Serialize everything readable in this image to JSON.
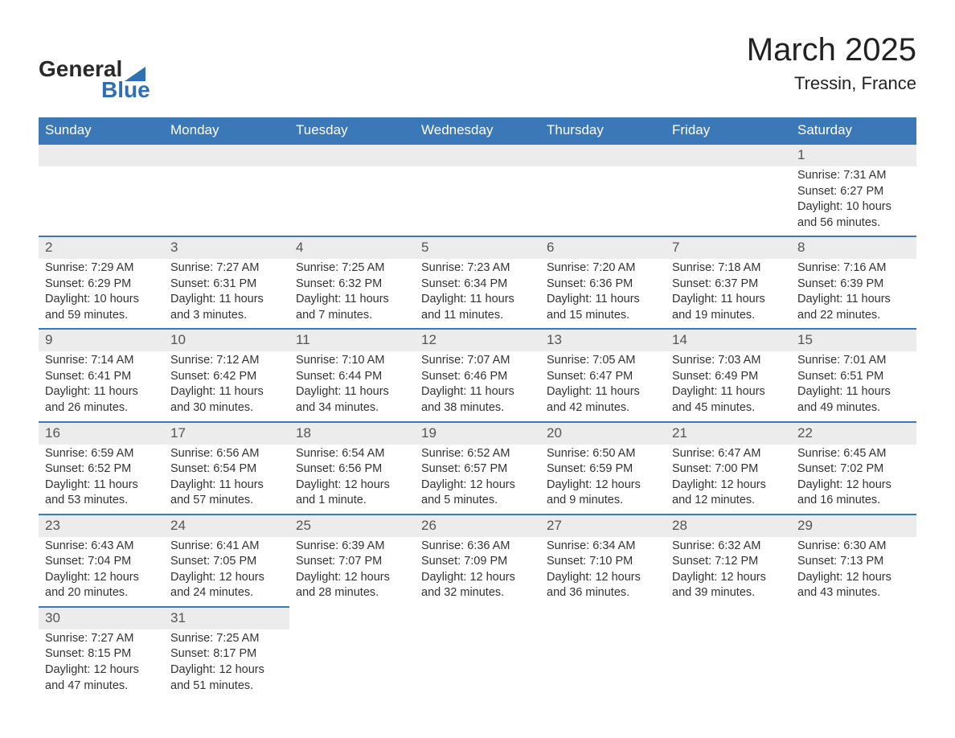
{
  "logo": {
    "word1": "General",
    "word2": "Blue",
    "tri_color": "#2f6fb3"
  },
  "title": "March 2025",
  "location": "Tressin, France",
  "header_bg": "#3b78b8",
  "header_text": "#ffffff",
  "daynum_bg": "#ececec",
  "row_border": "#3b78b8",
  "text_color": "#333333",
  "weekdays": [
    "Sunday",
    "Monday",
    "Tuesday",
    "Wednesday",
    "Thursday",
    "Friday",
    "Saturday"
  ],
  "weeks": [
    [
      null,
      null,
      null,
      null,
      null,
      null,
      {
        "n": "1",
        "sr": "7:31 AM",
        "ss": "6:27 PM",
        "dl": "10 hours and 56 minutes."
      }
    ],
    [
      {
        "n": "2",
        "sr": "7:29 AM",
        "ss": "6:29 PM",
        "dl": "10 hours and 59 minutes."
      },
      {
        "n": "3",
        "sr": "7:27 AM",
        "ss": "6:31 PM",
        "dl": "11 hours and 3 minutes."
      },
      {
        "n": "4",
        "sr": "7:25 AM",
        "ss": "6:32 PM",
        "dl": "11 hours and 7 minutes."
      },
      {
        "n": "5",
        "sr": "7:23 AM",
        "ss": "6:34 PM",
        "dl": "11 hours and 11 minutes."
      },
      {
        "n": "6",
        "sr": "7:20 AM",
        "ss": "6:36 PM",
        "dl": "11 hours and 15 minutes."
      },
      {
        "n": "7",
        "sr": "7:18 AM",
        "ss": "6:37 PM",
        "dl": "11 hours and 19 minutes."
      },
      {
        "n": "8",
        "sr": "7:16 AM",
        "ss": "6:39 PM",
        "dl": "11 hours and 22 minutes."
      }
    ],
    [
      {
        "n": "9",
        "sr": "7:14 AM",
        "ss": "6:41 PM",
        "dl": "11 hours and 26 minutes."
      },
      {
        "n": "10",
        "sr": "7:12 AM",
        "ss": "6:42 PM",
        "dl": "11 hours and 30 minutes."
      },
      {
        "n": "11",
        "sr": "7:10 AM",
        "ss": "6:44 PM",
        "dl": "11 hours and 34 minutes."
      },
      {
        "n": "12",
        "sr": "7:07 AM",
        "ss": "6:46 PM",
        "dl": "11 hours and 38 minutes."
      },
      {
        "n": "13",
        "sr": "7:05 AM",
        "ss": "6:47 PM",
        "dl": "11 hours and 42 minutes."
      },
      {
        "n": "14",
        "sr": "7:03 AM",
        "ss": "6:49 PM",
        "dl": "11 hours and 45 minutes."
      },
      {
        "n": "15",
        "sr": "7:01 AM",
        "ss": "6:51 PM",
        "dl": "11 hours and 49 minutes."
      }
    ],
    [
      {
        "n": "16",
        "sr": "6:59 AM",
        "ss": "6:52 PM",
        "dl": "11 hours and 53 minutes."
      },
      {
        "n": "17",
        "sr": "6:56 AM",
        "ss": "6:54 PM",
        "dl": "11 hours and 57 minutes."
      },
      {
        "n": "18",
        "sr": "6:54 AM",
        "ss": "6:56 PM",
        "dl": "12 hours and 1 minute."
      },
      {
        "n": "19",
        "sr": "6:52 AM",
        "ss": "6:57 PM",
        "dl": "12 hours and 5 minutes."
      },
      {
        "n": "20",
        "sr": "6:50 AM",
        "ss": "6:59 PM",
        "dl": "12 hours and 9 minutes."
      },
      {
        "n": "21",
        "sr": "6:47 AM",
        "ss": "7:00 PM",
        "dl": "12 hours and 12 minutes."
      },
      {
        "n": "22",
        "sr": "6:45 AM",
        "ss": "7:02 PM",
        "dl": "12 hours and 16 minutes."
      }
    ],
    [
      {
        "n": "23",
        "sr": "6:43 AM",
        "ss": "7:04 PM",
        "dl": "12 hours and 20 minutes."
      },
      {
        "n": "24",
        "sr": "6:41 AM",
        "ss": "7:05 PM",
        "dl": "12 hours and 24 minutes."
      },
      {
        "n": "25",
        "sr": "6:39 AM",
        "ss": "7:07 PM",
        "dl": "12 hours and 28 minutes."
      },
      {
        "n": "26",
        "sr": "6:36 AM",
        "ss": "7:09 PM",
        "dl": "12 hours and 32 minutes."
      },
      {
        "n": "27",
        "sr": "6:34 AM",
        "ss": "7:10 PM",
        "dl": "12 hours and 36 minutes."
      },
      {
        "n": "28",
        "sr": "6:32 AM",
        "ss": "7:12 PM",
        "dl": "12 hours and 39 minutes."
      },
      {
        "n": "29",
        "sr": "6:30 AM",
        "ss": "7:13 PM",
        "dl": "12 hours and 43 minutes."
      }
    ],
    [
      {
        "n": "30",
        "sr": "7:27 AM",
        "ss": "8:15 PM",
        "dl": "12 hours and 47 minutes."
      },
      {
        "n": "31",
        "sr": "7:25 AM",
        "ss": "8:17 PM",
        "dl": "12 hours and 51 minutes."
      },
      null,
      null,
      null,
      null,
      null
    ]
  ],
  "labels": {
    "sunrise": "Sunrise: ",
    "sunset": "Sunset: ",
    "daylight": "Daylight: "
  }
}
